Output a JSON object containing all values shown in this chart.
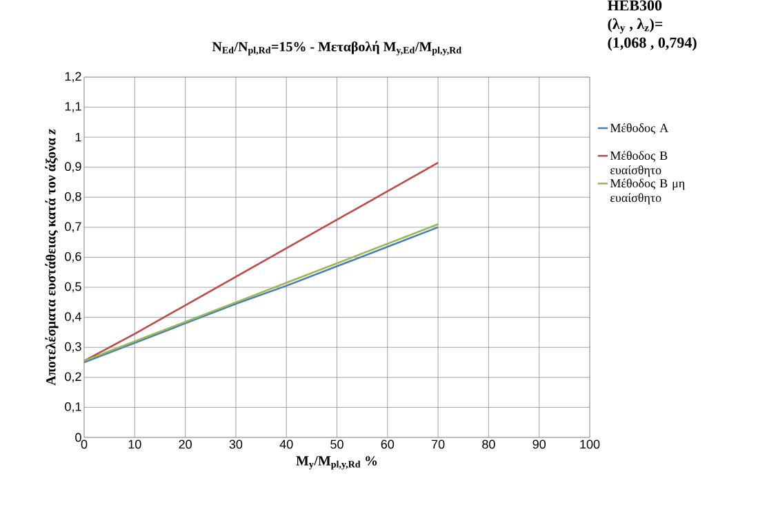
{
  "chart_data": {
    "type": "line",
    "title": "N$_{Ed}$/N$_{pl,Rd}$=15% - Μεταβολή M$_{y,Ed}$/M$_{pl,y,Rd}$",
    "xlabel": "M$_{y}$/M$_{pl,y,Rd}$ %",
    "ylabel": "Αποτελέσματα ευστάθειας κατά τον άξονα *z*",
    "annotations": [
      "HEB300",
      "(λ$_{y}$ , λ$_{z}$)=",
      "(1,068 , 0,794)"
    ],
    "x": [
      0,
      10,
      20,
      30,
      40,
      50,
      60,
      70
    ],
    "series": [
      {
        "name": "Μέθοδος Α",
        "color": "#4a7ebb",
        "values": [
          0.25,
          0.315,
          0.38,
          0.445,
          0.505,
          0.57,
          0.635,
          0.7
        ]
      },
      {
        "name": "Μέθοδος Β ευαίσθητο",
        "color": "#be4b48",
        "values": [
          0.255,
          0.345,
          0.44,
          0.535,
          0.63,
          0.725,
          0.82,
          0.915
        ]
      },
      {
        "name": "Μέθοδος Β μη ευαίσθητο",
        "color": "#98b954",
        "values": [
          0.255,
          0.32,
          0.385,
          0.45,
          0.515,
          0.58,
          0.645,
          0.71
        ]
      }
    ],
    "xlim": [
      0,
      100
    ],
    "xticks": [
      0,
      10,
      20,
      30,
      40,
      50,
      60,
      70,
      80,
      90,
      100
    ],
    "ylim": [
      0,
      1.2
    ],
    "yticks": [
      0,
      {
        "value": 0.1,
        "label": "0,1"
      },
      {
        "value": 0.2,
        "label": "0,2"
      },
      {
        "value": 0.3,
        "label": "0,3"
      },
      {
        "value": 0.4,
        "label": "0,4"
      },
      {
        "value": 0.5,
        "label": "0,5"
      },
      {
        "value": 0.6,
        "label": "0,6"
      },
      {
        "value": 0.7,
        "label": "0,7"
      },
      {
        "value": 0.8,
        "label": "0,8"
      },
      {
        "value": 0.9,
        "label": "0,9"
      },
      1,
      {
        "value": 1.1,
        "label": "1,1"
      },
      {
        "value": 1.2,
        "label": "1,2"
      }
    ],
    "grid": true,
    "legend": "right",
    "marker": "none",
    "line_style": "solid"
  }
}
